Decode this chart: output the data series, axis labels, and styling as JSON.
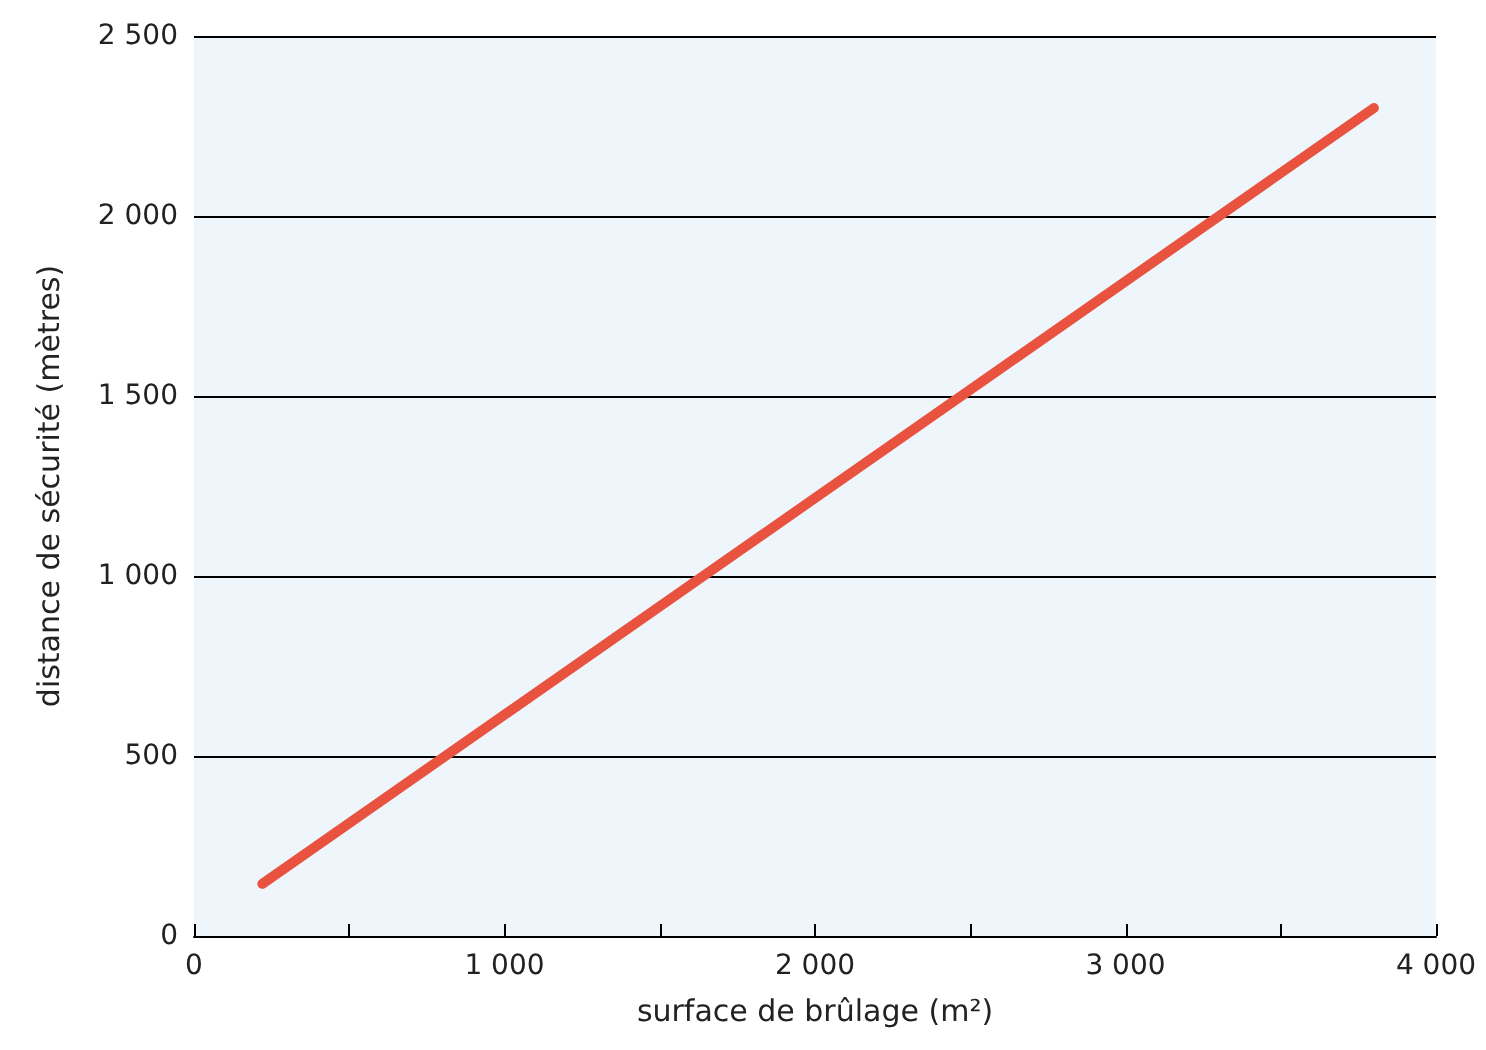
{
  "chart_data": {
    "type": "line",
    "xlabel": "surface de brûlage (m²)",
    "ylabel": "distance de sécurité (mètres)",
    "series": [
      {
        "color": "#e8523f",
        "x": [
          220,
          3800
        ],
        "values": [
          145,
          2300
        ]
      }
    ],
    "xlim": [
      0,
      4000
    ],
    "ylim": [
      0,
      2500
    ],
    "xticks": [
      {
        "value": 0,
        "label": "0"
      },
      {
        "value": 500,
        "label": null
      },
      {
        "value": 1000,
        "label": "1 000"
      },
      {
        "value": 1500,
        "label": null
      },
      {
        "value": 2000,
        "label": "2 000"
      },
      {
        "value": 2500,
        "label": null
      },
      {
        "value": 3000,
        "label": "3 000"
      },
      {
        "value": 3500,
        "label": null
      },
      {
        "value": 4000,
        "label": "4 000"
      }
    ],
    "yticks": [
      {
        "value": 0,
        "label": "0"
      },
      {
        "value": 500,
        "label": "500"
      },
      {
        "value": 1000,
        "label": "1 000"
      },
      {
        "value": 1500,
        "label": "1 500"
      },
      {
        "value": 2000,
        "label": "2 000"
      },
      {
        "value": 2500,
        "label": "2 500"
      }
    ],
    "grid": "y",
    "marker": "none",
    "line_style": "solid"
  }
}
